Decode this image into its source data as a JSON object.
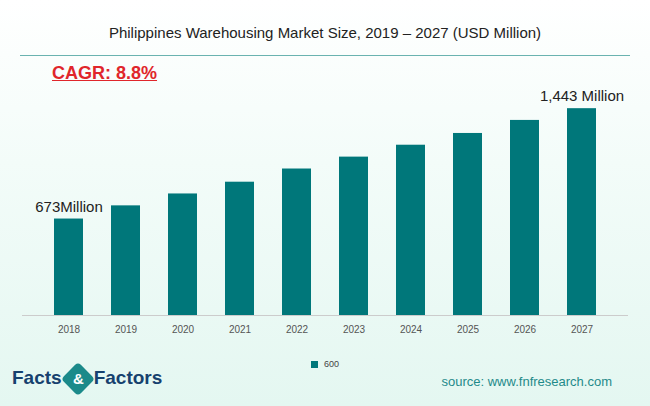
{
  "chart_data": {
    "type": "bar",
    "title": "Philippines Warehousing Market Size, 2019 – 2027 (USD Million)",
    "subtitle": "CAGR: 8.8%",
    "caption": "source: www.fnfresearch.com",
    "logo": [
      "Facts",
      "&",
      "Factors"
    ],
    "categories": [
      "2018",
      "2019",
      "2020",
      "2021",
      "2022",
      "2023",
      "2024",
      "2025",
      "2026",
      "2027"
    ],
    "series": [
      {
        "name": "600",
        "color": "#00777a",
        "values": [
          673,
          765,
          848,
          930,
          1022,
          1105,
          1188,
          1270,
          1361,
          1443
        ],
        "value_labels": [
          "673Million",
          null,
          null,
          null,
          null,
          null,
          null,
          null,
          null,
          "1,443 Million"
        ]
      }
    ],
    "data_labels": true,
    "ylim": [
      0,
      1500
    ],
    "yticks": [],
    "tick_labels": "x",
    "grid": false,
    "legend": "bottom"
  }
}
